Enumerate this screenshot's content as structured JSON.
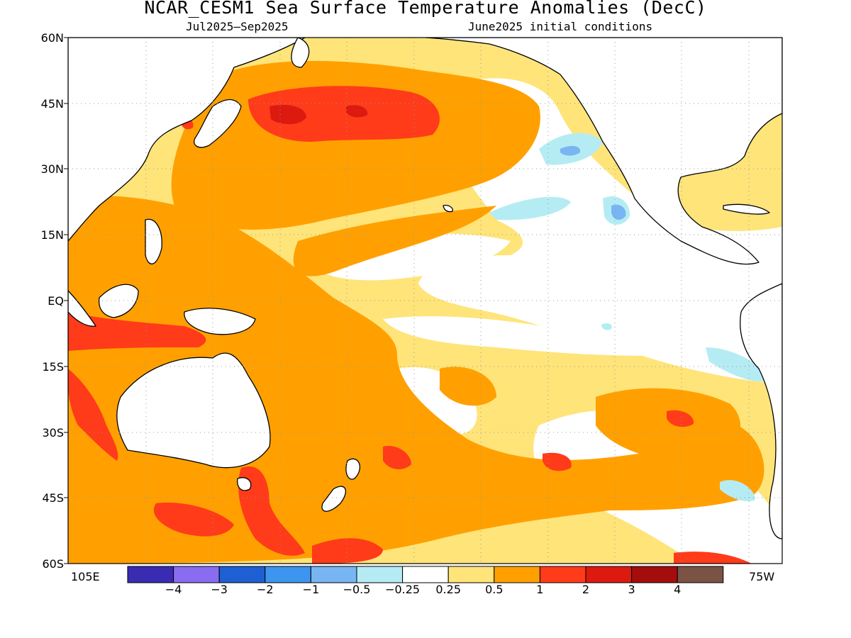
{
  "title": "NCAR_CESM1 Sea Surface Temperature Anomalies (DecC)",
  "subtitle_left": "Jul2025–Sep2025",
  "subtitle_right": "June2025 initial conditions",
  "lat_labels": [
    "60N",
    "45N",
    "30N",
    "15N",
    "EQ",
    "15S",
    "30S",
    "45S",
    "60S"
  ],
  "lon_labels": {
    "left": "105E",
    "right": "75W"
  },
  "colorbar": {
    "labels": [
      "−4",
      "−3",
      "−2",
      "−1",
      "−0.5",
      "−0.25",
      "0.25",
      "0.5",
      "1",
      "2",
      "3",
      "4"
    ],
    "colors": [
      "#3a2bb3",
      "#8a6cf0",
      "#1e60d4",
      "#3c95ee",
      "#78b5f3",
      "#b5ecf4",
      "#ffffff",
      "#ffe47a",
      "#ffa000",
      "#ff3b1a",
      "#dc1a10",
      "#a50d0d",
      "#7a5344"
    ]
  },
  "palette": {
    "land": "#ffffff",
    "coast": "#000000",
    "neutral": "#ffffff",
    "weak_warm": "#ffe47a",
    "warm": "#ffa000",
    "hot": "#ff3b1a",
    "very_hot": "#dc1a10",
    "weak_cool": "#b5ecf4",
    "cool": "#78b5f3"
  }
}
